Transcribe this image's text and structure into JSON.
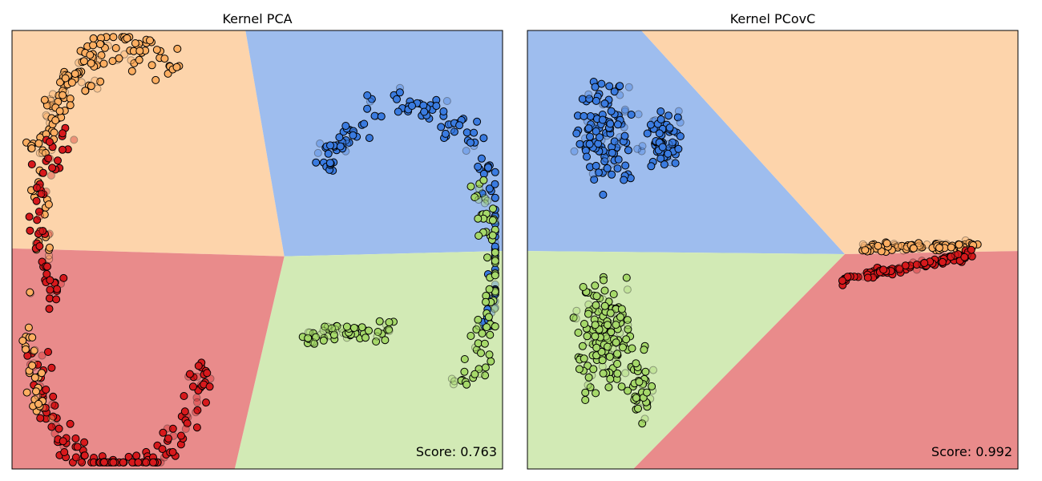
{
  "chart_data": [
    {
      "type": "scatter",
      "title": "Kernel PCA",
      "annotation": "Score: 0.763",
      "xlim": [
        0,
        1
      ],
      "ylim": [
        0,
        1
      ],
      "grid": false,
      "axis_ticks": false,
      "class_colors": {
        "red": "#d7191c",
        "orange": "#fdae61",
        "blue": "#3a7be0",
        "green": "#a6d96a"
      },
      "region_colors": {
        "red": "#e98b8b",
        "orange": "#fdd4ab",
        "blue": "#9ebdee",
        "green": "#d2eab5"
      },
      "regions": [
        {
          "class": "orange",
          "polygon": [
            [
              0,
              1
            ],
            [
              0.476,
              1
            ],
            [
              0.555,
              0.485
            ],
            [
              0,
              0.503
            ]
          ]
        },
        {
          "class": "blue",
          "polygon": [
            [
              0.476,
              1
            ],
            [
              1,
              1
            ],
            [
              1,
              0.497
            ],
            [
              0.555,
              0.485
            ]
          ]
        },
        {
          "class": "green",
          "polygon": [
            [
              0.555,
              0.485
            ],
            [
              1,
              0.497
            ],
            [
              1,
              0
            ],
            [
              0.454,
              0
            ]
          ]
        },
        {
          "class": "red",
          "polygon": [
            [
              0,
              0.503
            ],
            [
              0.555,
              0.485
            ],
            [
              0.454,
              0
            ],
            [
              0,
              0
            ]
          ]
        }
      ],
      "clusters": [
        {
          "class": "orange",
          "shape": "arc",
          "cx": 0.23,
          "cy": 0.66,
          "r": 0.205,
          "a0": 55,
          "a1": 168,
          "thickness": 0.045,
          "n": 120
        },
        {
          "class": "orange",
          "shape": "arc",
          "cx": 0.24,
          "cy": 0.62,
          "r": 0.205,
          "a0": 110,
          "a1": 210,
          "thickness": 0.035,
          "n": 40
        },
        {
          "class": "red",
          "shape": "arc",
          "cx": 0.21,
          "cy": 0.56,
          "r": 0.175,
          "a0": 125,
          "a1": 225,
          "thickness": 0.04,
          "n": 60
        },
        {
          "class": "red",
          "shape": "arc",
          "cx": 0.22,
          "cy": 0.27,
          "r": 0.19,
          "a0": 180,
          "a1": 355,
          "thickness": 0.04,
          "n": 150
        },
        {
          "class": "orange",
          "shape": "arc",
          "cx": 0.22,
          "cy": 0.3,
          "r": 0.21,
          "a0": 160,
          "a1": 220,
          "thickness": 0.03,
          "n": 30
        },
        {
          "class": "blue",
          "shape": "arc",
          "cx": 0.8,
          "cy": 0.51,
          "r": 0.22,
          "a0": -35,
          "a1": 148,
          "thickness": 0.04,
          "n": 150
        },
        {
          "class": "green",
          "shape": "arc",
          "cx": 0.79,
          "cy": 0.45,
          "r": 0.22,
          "a0": -60,
          "a1": 40,
          "thickness": 0.045,
          "n": 80
        },
        {
          "class": "green",
          "shape": "band",
          "x0": 0.58,
          "y0": 0.3,
          "x1": 0.78,
          "y1": 0.32,
          "thickness": 0.03,
          "n": 60
        }
      ]
    },
    {
      "type": "scatter",
      "title": "Kernel PCovC",
      "annotation": "Score: 0.992",
      "xlim": [
        0,
        1
      ],
      "ylim": [
        0,
        1
      ],
      "grid": false,
      "axis_ticks": false,
      "class_colors": {
        "red": "#d7191c",
        "orange": "#fdae61",
        "blue": "#3a7be0",
        "green": "#a6d96a"
      },
      "region_colors": {
        "red": "#e98b8b",
        "orange": "#fdd4ab",
        "blue": "#9ebdee",
        "green": "#d2eab5"
      },
      "regions": [
        {
          "class": "blue",
          "polygon": [
            [
              0,
              1
            ],
            [
              0.232,
              1
            ],
            [
              0.647,
              0.49
            ],
            [
              0,
              0.497
            ]
          ]
        },
        {
          "class": "orange",
          "polygon": [
            [
              0.232,
              1
            ],
            [
              1,
              1
            ],
            [
              1,
              0.497
            ],
            [
              0.647,
              0.49
            ]
          ]
        },
        {
          "class": "green",
          "polygon": [
            [
              0,
              0.497
            ],
            [
              0.647,
              0.49
            ],
            [
              0.216,
              0
            ],
            [
              0,
              0
            ]
          ]
        },
        {
          "class": "red",
          "polygon": [
            [
              0.647,
              0.49
            ],
            [
              1,
              0.497
            ],
            [
              1,
              0
            ],
            [
              0.216,
              0
            ]
          ]
        }
      ],
      "clusters": [
        {
          "class": "blue",
          "shape": "blob",
          "cx": 0.16,
          "cy": 0.77,
          "rx": 0.09,
          "ry": 0.17,
          "n": 130
        },
        {
          "class": "blue",
          "shape": "blob",
          "cx": 0.28,
          "cy": 0.75,
          "rx": 0.05,
          "ry": 0.1,
          "n": 60
        },
        {
          "class": "green",
          "shape": "blob",
          "cx": 0.16,
          "cy": 0.3,
          "rx": 0.085,
          "ry": 0.17,
          "n": 150
        },
        {
          "class": "green",
          "shape": "blob",
          "cx": 0.23,
          "cy": 0.19,
          "rx": 0.04,
          "ry": 0.12,
          "n": 40
        },
        {
          "class": "orange",
          "shape": "band",
          "x0": 0.68,
          "y0": 0.505,
          "x1": 0.92,
          "y1": 0.51,
          "thickness": 0.014,
          "n": 90
        },
        {
          "class": "red",
          "shape": "band",
          "x0": 0.64,
          "y0": 0.43,
          "x1": 0.91,
          "y1": 0.49,
          "thickness": 0.016,
          "n": 90
        }
      ]
    }
  ]
}
